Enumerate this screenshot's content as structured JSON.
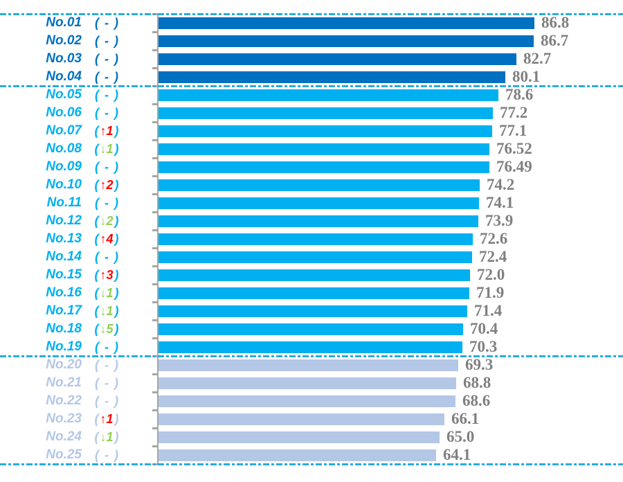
{
  "chart_data": {
    "type": "bar",
    "orientation": "horizontal",
    "title": "",
    "layout_hints": {
      "value_labels_position": "end-of-bar",
      "category_axis_ticks": true,
      "value_axis_tick_labels_visible": false,
      "starts_at_zero": true,
      "group_separator_lines": "dashed, full width, above No.01, between No.04/No.05, between No.19/No.20, below No.25"
    },
    "groups": [
      {
        "name": "group-top",
        "color": "#0070C0"
      },
      {
        "name": "group-middle",
        "color": "#00B0F0"
      },
      {
        "name": "group-bottom",
        "color": "#B4C7E7"
      }
    ],
    "colors": {
      "up": "#FF0000",
      "down": "#92D050",
      "value_label": "#808080",
      "axis": "#A6A6A6",
      "separator": "#29ABE2",
      "background": "#FFFFFF"
    },
    "icons": {
      "up_arrow": "↑",
      "down_arrow": "↓",
      "no_change": "-",
      "paren_open": "(",
      "paren_close": ")"
    },
    "rows": [
      {
        "label": "No.01",
        "change": {
          "dir": "none",
          "n": null,
          "display": "( - )"
        },
        "value": 86.8,
        "value_text": "86.8",
        "group": 0
      },
      {
        "label": "No.02",
        "change": {
          "dir": "none",
          "n": null,
          "display": "( - )"
        },
        "value": 86.7,
        "value_text": "86.7",
        "group": 0
      },
      {
        "label": "No.03",
        "change": {
          "dir": "none",
          "n": null,
          "display": "( - )"
        },
        "value": 82.7,
        "value_text": "82.7",
        "group": 0
      },
      {
        "label": "No.04",
        "change": {
          "dir": "none",
          "n": null,
          "display": "( - )"
        },
        "value": 80.1,
        "value_text": "80.1",
        "group": 0
      },
      {
        "label": "No.05",
        "change": {
          "dir": "none",
          "n": null,
          "display": "( - )"
        },
        "value": 78.6,
        "value_text": "78.6",
        "group": 1
      },
      {
        "label": "No.06",
        "change": {
          "dir": "none",
          "n": null,
          "display": "( - )"
        },
        "value": 77.2,
        "value_text": "77.2",
        "group": 1
      },
      {
        "label": "No.07",
        "change": {
          "dir": "up",
          "n": 1,
          "display": "(↑1)"
        },
        "value": 77.1,
        "value_text": "77.1",
        "group": 1
      },
      {
        "label": "No.08",
        "change": {
          "dir": "down",
          "n": 1,
          "display": "(↓1)"
        },
        "value": 76.52,
        "value_text": "76.52",
        "group": 1
      },
      {
        "label": "No.09",
        "change": {
          "dir": "none",
          "n": null,
          "display": "( - )"
        },
        "value": 76.49,
        "value_text": "76.49",
        "group": 1
      },
      {
        "label": "No.10",
        "change": {
          "dir": "up",
          "n": 2,
          "display": "(↑2)"
        },
        "value": 74.2,
        "value_text": "74.2",
        "group": 1
      },
      {
        "label": "No.11",
        "change": {
          "dir": "none",
          "n": null,
          "display": "( - )"
        },
        "value": 74.1,
        "value_text": "74.1",
        "group": 1
      },
      {
        "label": "No.12",
        "change": {
          "dir": "down",
          "n": 2,
          "display": "(↓2)"
        },
        "value": 73.9,
        "value_text": "73.9",
        "group": 1
      },
      {
        "label": "No.13",
        "change": {
          "dir": "up",
          "n": 4,
          "display": "(↑4)"
        },
        "value": 72.6,
        "value_text": "72.6",
        "group": 1
      },
      {
        "label": "No.14",
        "change": {
          "dir": "none",
          "n": null,
          "display": "( - )"
        },
        "value": 72.4,
        "value_text": "72.4",
        "group": 1
      },
      {
        "label": "No.15",
        "change": {
          "dir": "up",
          "n": 3,
          "display": "(↑3)"
        },
        "value": 72.0,
        "value_text": "72.0",
        "group": 1
      },
      {
        "label": "No.16",
        "change": {
          "dir": "down",
          "n": 1,
          "display": "(↓1)"
        },
        "value": 71.9,
        "value_text": "71.9",
        "group": 1
      },
      {
        "label": "No.17",
        "change": {
          "dir": "down",
          "n": 1,
          "display": "(↓1)"
        },
        "value": 71.4,
        "value_text": "71.4",
        "group": 1
      },
      {
        "label": "No.18",
        "change": {
          "dir": "down",
          "n": 5,
          "display": "(↓5)"
        },
        "value": 70.4,
        "value_text": "70.4",
        "group": 1
      },
      {
        "label": "No.19",
        "change": {
          "dir": "none",
          "n": null,
          "display": "( - )"
        },
        "value": 70.3,
        "value_text": "70.3",
        "group": 1
      },
      {
        "label": "No.20",
        "change": {
          "dir": "none",
          "n": null,
          "display": "( - )"
        },
        "value": 69.3,
        "value_text": "69.3",
        "group": 2
      },
      {
        "label": "No.21",
        "change": {
          "dir": "none",
          "n": null,
          "display": "( - )"
        },
        "value": 68.8,
        "value_text": "68.8",
        "group": 2
      },
      {
        "label": "No.22",
        "change": {
          "dir": "none",
          "n": null,
          "display": "( - )"
        },
        "value": 68.6,
        "value_text": "68.6",
        "group": 2
      },
      {
        "label": "No.23",
        "change": {
          "dir": "up",
          "n": 1,
          "display": "(↑1)"
        },
        "value": 66.1,
        "value_text": "66.1",
        "group": 2
      },
      {
        "label": "No.24",
        "change": {
          "dir": "down",
          "n": 1,
          "display": "(↓1)"
        },
        "value": 65.0,
        "value_text": "65.0",
        "group": 2
      },
      {
        "label": "No.25",
        "change": {
          "dir": "none",
          "n": null,
          "display": "( - )"
        },
        "value": 64.1,
        "value_text": "64.1",
        "group": 2
      }
    ]
  }
}
